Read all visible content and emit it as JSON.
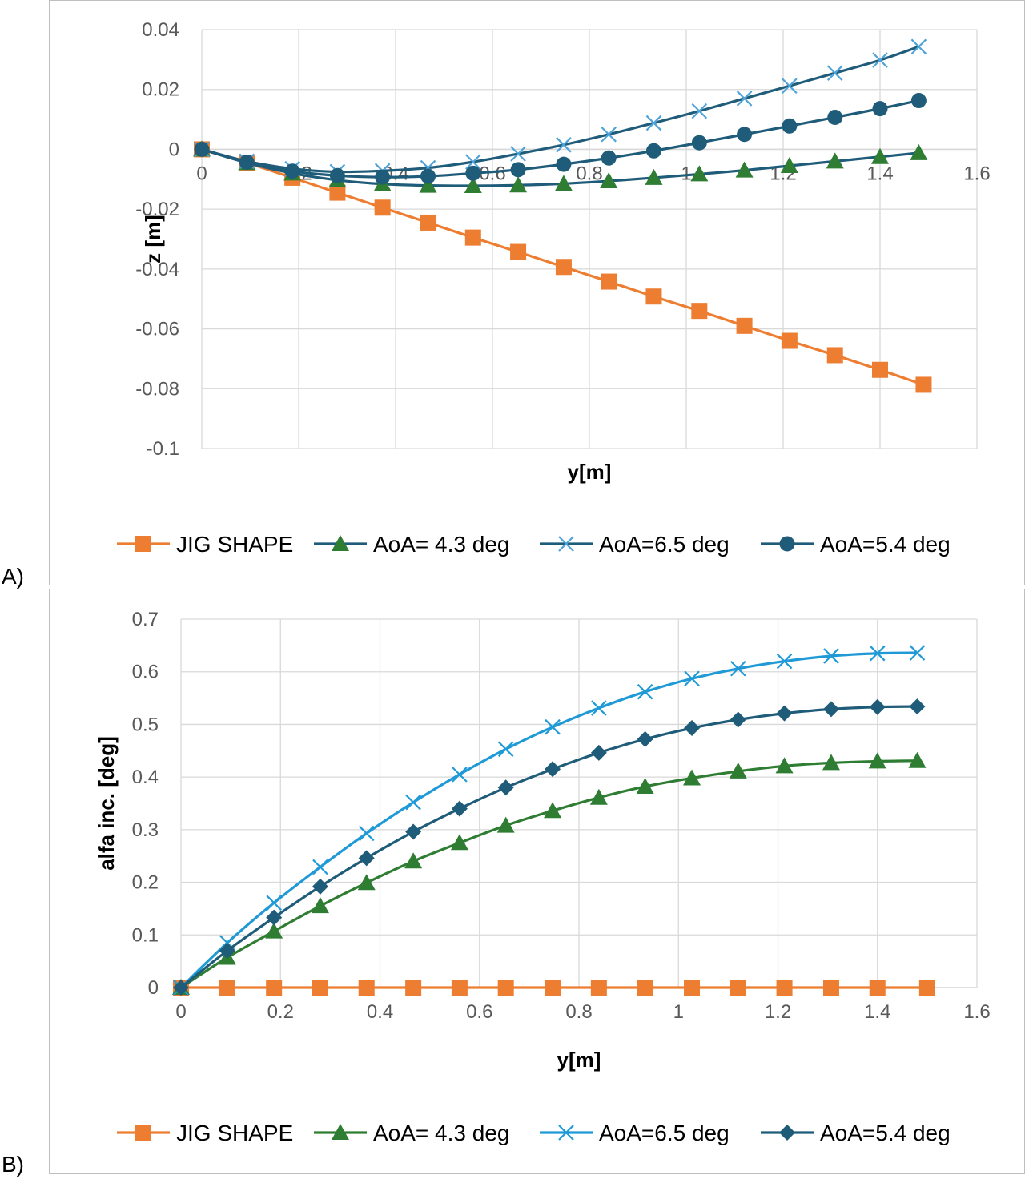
{
  "panels": [
    {
      "label": "A)",
      "chart_data": {
        "type": "line",
        "title": "",
        "xlabel": "y[m]",
        "ylabel": "z [m]",
        "xlim": [
          0,
          1.6
        ],
        "ylim": [
          -0.1,
          0.04
        ],
        "xticks": [
          0,
          0.2,
          0.4,
          0.6,
          0.8,
          1,
          1.2,
          1.4,
          1.6
        ],
        "yticks": [
          0.04,
          0.02,
          0,
          -0.02,
          -0.04,
          -0.06,
          -0.08,
          -0.1
        ],
        "xtick_labels": [
          "0",
          "0.2",
          "0.4",
          "0.6",
          "0.8",
          "1",
          "1.2",
          "1.4",
          "1.6"
        ],
        "ytick_labels": [
          "0.04",
          "0.02",
          "0",
          "-0.02",
          "-0.04",
          "-0.06",
          "-0.08",
          "-0.1"
        ],
        "x_axis_at_zero": true,
        "grid": true,
        "legend_position": "bottom",
        "series": [
          {
            "name": "JIG SHAPE",
            "color": "#ed7d31",
            "line_color": "#ed7d31",
            "marker": "square",
            "x": [
              0,
              0.093,
              0.187,
              0.28,
              0.373,
              0.467,
              0.56,
              0.653,
              0.747,
              0.84,
              0.933,
              1.027,
              1.12,
              1.213,
              1.307,
              1.4,
              1.49
            ],
            "y": [
              0,
              -0.0045,
              -0.0095,
              -0.0145,
              -0.0195,
              -0.0245,
              -0.0295,
              -0.0343,
              -0.0393,
              -0.0442,
              -0.0492,
              -0.054,
              -0.059,
              -0.064,
              -0.0688,
              -0.0737,
              -0.0787
            ]
          },
          {
            "name": "AoA= 4.3 deg",
            "color": "#2e7d32",
            "line_color": "#1f5c7a",
            "marker": "triangle",
            "x": [
              0,
              0.093,
              0.187,
              0.28,
              0.373,
              0.467,
              0.56,
              0.653,
              0.747,
              0.84,
              0.933,
              1.027,
              1.12,
              1.213,
              1.307,
              1.4,
              1.48
            ],
            "y": [
              0,
              -0.0045,
              -0.008,
              -0.0103,
              -0.0116,
              -0.0121,
              -0.0122,
              -0.012,
              -0.0115,
              -0.0106,
              -0.0095,
              -0.0083,
              -0.007,
              -0.0055,
              -0.004,
              -0.0025,
              -0.0012
            ]
          },
          {
            "name": "AoA=6.5 deg",
            "color": "#4fa3d9",
            "line_color": "#1f5c7a",
            "marker": "x",
            "x": [
              0,
              0.093,
              0.187,
              0.28,
              0.373,
              0.467,
              0.56,
              0.653,
              0.747,
              0.84,
              0.933,
              1.027,
              1.12,
              1.213,
              1.307,
              1.4,
              1.48
            ],
            "y": [
              0,
              -0.004,
              -0.0065,
              -0.0075,
              -0.0072,
              -0.0062,
              -0.0042,
              -0.0015,
              0.0015,
              0.005,
              0.0088,
              0.0128,
              0.017,
              0.0212,
              0.0255,
              0.0298,
              0.0343
            ]
          },
          {
            "name": "AoA=5.4 deg",
            "color": "#1f5c7a",
            "line_color": "#1f5c7a",
            "marker": "circle",
            "x": [
              0,
              0.093,
              0.187,
              0.28,
              0.373,
              0.467,
              0.56,
              0.653,
              0.747,
              0.84,
              0.933,
              1.027,
              1.12,
              1.213,
              1.307,
              1.4,
              1.48
            ],
            "y": [
              0,
              -0.0043,
              -0.0073,
              -0.0088,
              -0.0093,
              -0.009,
              -0.008,
              -0.0068,
              -0.005,
              -0.0029,
              -0.0005,
              0.0022,
              0.005,
              0.0078,
              0.0107,
              0.0136,
              0.0163
            ]
          }
        ]
      }
    },
    {
      "label": "B)",
      "chart_data": {
        "type": "line",
        "title": "",
        "xlabel": "y[m]",
        "ylabel": "alfa inc. [deg]",
        "xlim": [
          0,
          1.6
        ],
        "ylim": [
          0,
          0.7
        ],
        "xticks": [
          0,
          0.2,
          0.4,
          0.6,
          0.8,
          1,
          1.2,
          1.4,
          1.6
        ],
        "yticks": [
          0.7,
          0.6,
          0.5,
          0.4,
          0.3,
          0.2,
          0.1,
          0
        ],
        "xtick_labels": [
          "0",
          "0.2",
          "0.4",
          "0.6",
          "0.8",
          "1",
          "1.2",
          "1.4",
          "1.6"
        ],
        "ytick_labels": [
          "0.7",
          "0.6",
          "0.5",
          "0.4",
          "0.3",
          "0.2",
          "0.1",
          "0"
        ],
        "x_axis_at_zero": false,
        "grid": true,
        "legend_position": "bottom",
        "series": [
          {
            "name": "JIG SHAPE",
            "color": "#ed7d31",
            "line_color": "#ed7d31",
            "marker": "square",
            "x": [
              0,
              0.093,
              0.187,
              0.28,
              0.373,
              0.467,
              0.56,
              0.653,
              0.747,
              0.84,
              0.933,
              1.027,
              1.12,
              1.213,
              1.307,
              1.4,
              1.5
            ],
            "y": [
              0,
              0,
              0,
              0,
              0,
              0,
              0,
              0,
              0,
              0,
              0,
              0,
              0,
              0,
              0,
              0,
              0
            ]
          },
          {
            "name": "AoA= 4.3 deg",
            "color": "#2e7d32",
            "line_color": "#2e7d32",
            "marker": "triangle",
            "x": [
              0,
              0.093,
              0.187,
              0.28,
              0.373,
              0.467,
              0.56,
              0.653,
              0.747,
              0.84,
              0.933,
              1.027,
              1.12,
              1.213,
              1.307,
              1.4,
              1.48
            ],
            "y": [
              0,
              0.057,
              0.107,
              0.155,
              0.199,
              0.24,
              0.275,
              0.308,
              0.336,
              0.361,
              0.382,
              0.398,
              0.411,
              0.421,
              0.427,
              0.43,
              0.431
            ]
          },
          {
            "name": "AoA=6.5 deg",
            "color": "#1f9ad6",
            "line_color": "#1f9ad6",
            "marker": "x",
            "x": [
              0,
              0.093,
              0.187,
              0.28,
              0.373,
              0.467,
              0.56,
              0.653,
              0.747,
              0.84,
              0.933,
              1.027,
              1.12,
              1.213,
              1.307,
              1.4,
              1.48
            ],
            "y": [
              0,
              0.085,
              0.161,
              0.229,
              0.293,
              0.352,
              0.405,
              0.453,
              0.495,
              0.531,
              0.562,
              0.587,
              0.606,
              0.62,
              0.63,
              0.635,
              0.636
            ]
          },
          {
            "name": "AoA=5.4 deg",
            "color": "#1f5c7a",
            "line_color": "#1f5c7a",
            "marker": "diamond",
            "x": [
              0,
              0.093,
              0.187,
              0.28,
              0.373,
              0.467,
              0.56,
              0.653,
              0.747,
              0.84,
              0.933,
              1.027,
              1.12,
              1.213,
              1.307,
              1.4,
              1.48
            ],
            "y": [
              0,
              0.07,
              0.133,
              0.192,
              0.246,
              0.296,
              0.34,
              0.38,
              0.415,
              0.446,
              0.472,
              0.493,
              0.509,
              0.521,
              0.529,
              0.533,
              0.534
            ]
          }
        ]
      }
    }
  ]
}
